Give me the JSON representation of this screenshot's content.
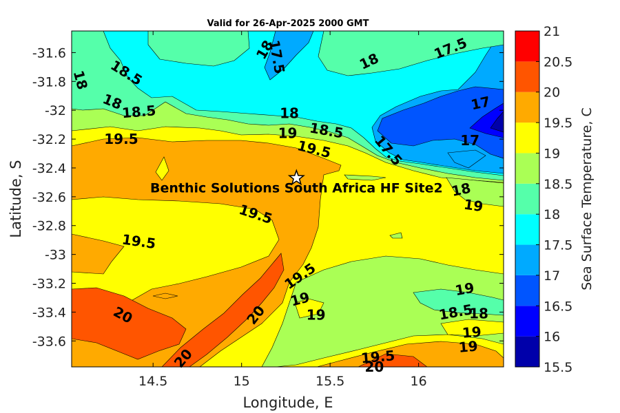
{
  "chart_data": {
    "type": "heatmap",
    "title": "Valid for 26-Apr-2025 2000 GMT",
    "xlabel": "Longitude, E",
    "ylabel": "Latitude, S",
    "colorbar_label": "Sea Surface Temperature, C",
    "xlim": [
      14.04,
      16.48
    ],
    "ylim": [
      -33.78,
      -31.45
    ],
    "xticks": [
      14.5,
      15,
      15.5,
      16
    ],
    "xtick_labels": [
      "14.5",
      "15",
      "15.5",
      "16"
    ],
    "yticks": [
      -31.6,
      -31.8,
      -32,
      -32.2,
      -32.4,
      -32.6,
      -32.8,
      -33,
      -33.2,
      -33.4,
      -33.6
    ],
    "ytick_labels": [
      "-31.6",
      "-31.8",
      "-32",
      "-32.2",
      "-32.4",
      "-32.6",
      "-32.8",
      "-33",
      "-33.2",
      "-33.4",
      "-33.6"
    ],
    "colorbar_levels": [
      15.5,
      16,
      16.5,
      17,
      17.5,
      18,
      18.5,
      19,
      19.5,
      20,
      20.5,
      21
    ],
    "colorbar_tick_labels": [
      "15.5",
      "16",
      "16.5",
      "17",
      "17.5",
      "18",
      "18.5",
      "19",
      "19.5",
      "20",
      "20.5",
      "21"
    ],
    "colors": [
      "#0000aa",
      "#0000ff",
      "#0055ff",
      "#00aaff",
      "#00ffff",
      "#55ffaa",
      "#aaff55",
      "#ffff00",
      "#ffaa00",
      "#ff5500",
      "#ff0000"
    ],
    "site": {
      "name": "Benthic Solutions South Africa HF Site2",
      "lon": 15.31,
      "lat": -32.47
    },
    "contour_labels": [
      {
        "text": "18",
        "lon": 14.09,
        "lat": -31.79,
        "rot": 75
      },
      {
        "text": "18.5",
        "lon": 14.35,
        "lat": -31.74,
        "rot": 32
      },
      {
        "text": "18",
        "lon": 14.27,
        "lat": -31.94,
        "rot": 22
      },
      {
        "text": "18.5",
        "lon": 14.42,
        "lat": -32.01,
        "rot": -5
      },
      {
        "text": "19.5",
        "lon": 14.32,
        "lat": -32.2,
        "rot": 0
      },
      {
        "text": "18",
        "lon": 15.13,
        "lat": -31.58,
        "rot": -60
      },
      {
        "text": "17.5",
        "lon": 15.2,
        "lat": -31.63,
        "rot": 80
      },
      {
        "text": "18",
        "lon": 15.72,
        "lat": -31.66,
        "rot": -25
      },
      {
        "text": "17.5",
        "lon": 16.18,
        "lat": -31.57,
        "rot": -22
      },
      {
        "text": "17",
        "lon": 16.35,
        "lat": -31.95,
        "rot": -12
      },
      {
        "text": "18",
        "lon": 15.27,
        "lat": -32.02,
        "rot": 0
      },
      {
        "text": "19",
        "lon": 15.26,
        "lat": -32.16,
        "rot": 0
      },
      {
        "text": "18.5",
        "lon": 15.48,
        "lat": -32.14,
        "rot": 10
      },
      {
        "text": "19.5",
        "lon": 15.41,
        "lat": -32.27,
        "rot": 14
      },
      {
        "text": "17.5",
        "lon": 15.83,
        "lat": -32.28,
        "rot": 50
      },
      {
        "text": "17",
        "lon": 16.29,
        "lat": -32.21,
        "rot": 0
      },
      {
        "text": "18",
        "lon": 16.24,
        "lat": -32.55,
        "rot": -12
      },
      {
        "text": "19",
        "lon": 16.31,
        "lat": -32.66,
        "rot": 8
      },
      {
        "text": "19.5",
        "lon": 15.08,
        "lat": -32.72,
        "rot": 18
      },
      {
        "text": "19.5",
        "lon": 14.42,
        "lat": -32.91,
        "rot": 8
      },
      {
        "text": "19.5",
        "lon": 15.33,
        "lat": -33.15,
        "rot": -35
      },
      {
        "text": "19",
        "lon": 15.33,
        "lat": -33.31,
        "rot": -15
      },
      {
        "text": "19",
        "lon": 15.42,
        "lat": -33.42,
        "rot": 0
      },
      {
        "text": "20",
        "lon": 15.08,
        "lat": -33.42,
        "rot": -52
      },
      {
        "text": "20",
        "lon": 14.33,
        "lat": -33.42,
        "rot": 28
      },
      {
        "text": "20",
        "lon": 14.67,
        "lat": -33.72,
        "rot": -50
      },
      {
        "text": "19",
        "lon": 16.26,
        "lat": -33.24,
        "rot": -10
      },
      {
        "text": "18.5",
        "lon": 16.21,
        "lat": -33.4,
        "rot": -10
      },
      {
        "text": "18",
        "lon": 16.34,
        "lat": -33.41,
        "rot": 0
      },
      {
        "text": "19",
        "lon": 16.3,
        "lat": -33.54,
        "rot": -5
      },
      {
        "text": "19",
        "lon": 16.28,
        "lat": -33.64,
        "rot": -5
      },
      {
        "text": "19.5",
        "lon": 15.77,
        "lat": -33.71,
        "rot": -5
      },
      {
        "text": "20",
        "lon": 15.75,
        "lat": -33.78,
        "rot": 0
      }
    ]
  }
}
